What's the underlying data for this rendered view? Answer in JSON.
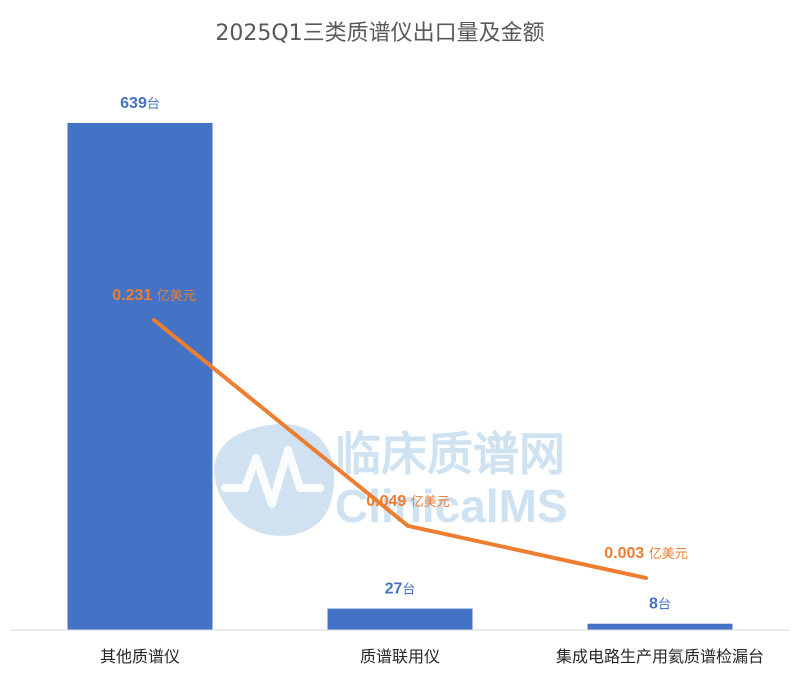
{
  "chart_data": {
    "type": "bar+line",
    "title": "2025Q1三类质谱仪出口量及金额",
    "categories": [
      "其他质谱仪",
      "质谱联用仪",
      "集成电路生产用氦质谱检漏台"
    ],
    "series": [
      {
        "kind": "bar",
        "values": [
          639,
          27,
          8
        ],
        "unit": "台",
        "color": "#4472c4"
      },
      {
        "kind": "line",
        "values": [
          0.231,
          0.049,
          0.003
        ],
        "unit": "亿美元",
        "color": "#ed7d31"
      }
    ],
    "grid": false,
    "legend": "none"
  },
  "watermark": {
    "cn": "临床质谱网",
    "en": "ClinicalMS",
    "color": "#a9cbe6"
  }
}
